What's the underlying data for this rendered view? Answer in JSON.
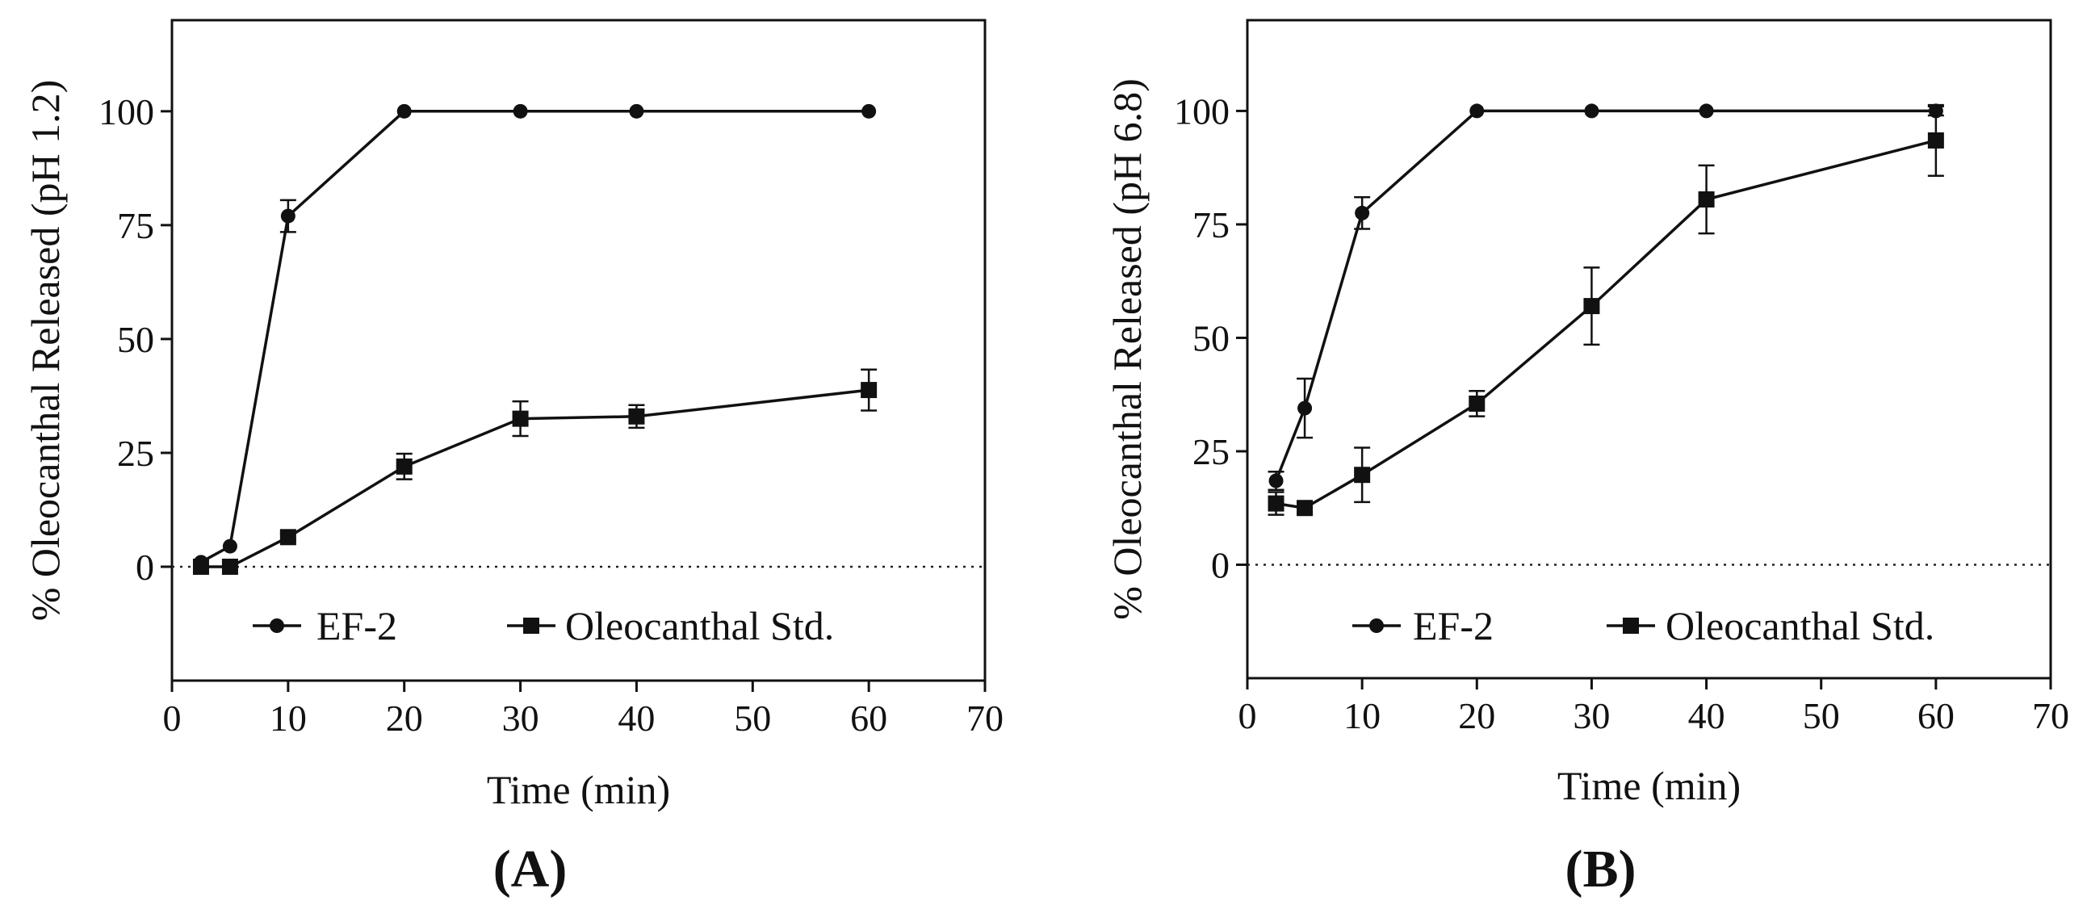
{
  "chart_data": [
    {
      "type": "line",
      "panel_label": "(A)",
      "title": "",
      "xlabel": "Time (min)",
      "ylabel": "% Oleocanthal Released (pH 1.2)",
      "xlim": [
        0,
        70
      ],
      "ylim": [
        -25,
        120
      ],
      "x_ticks": [
        "0",
        "10",
        "20",
        "30",
        "40",
        "50",
        "60",
        "70"
      ],
      "y_ticks": [
        "0",
        "25",
        "50",
        "75",
        "100"
      ],
      "grid": false,
      "zero_reference_line": "dotted",
      "legend_position": "bottom-center",
      "series": [
        {
          "name": "EF-2",
          "marker": "circle",
          "x": [
            2.5,
            5,
            10,
            20,
            30,
            40,
            60
          ],
          "values": [
            1,
            4.5,
            77,
            100,
            100,
            100,
            100
          ],
          "error": [
            0,
            0,
            3.5,
            0,
            0,
            0,
            0
          ]
        },
        {
          "name": "Oleocanthal Std.",
          "marker": "square",
          "x": [
            2.5,
            5,
            10,
            20,
            30,
            40,
            60
          ],
          "values": [
            0,
            0,
            6.5,
            22,
            32.5,
            33,
            38.8
          ],
          "error": [
            0,
            0,
            0.8,
            2.8,
            3.8,
            2.5,
            4.5
          ]
        }
      ]
    },
    {
      "type": "line",
      "panel_label": "(B)",
      "title": "",
      "xlabel": "Time (min)",
      "ylabel": "% Oleocanthal Released (pH 6.8)",
      "xlim": [
        0,
        70
      ],
      "ylim": [
        -25,
        120
      ],
      "x_ticks": [
        "0",
        "10",
        "20",
        "30",
        "40",
        "50",
        "60",
        "70"
      ],
      "y_ticks": [
        "0",
        "25",
        "50",
        "75",
        "100"
      ],
      "grid": false,
      "zero_reference_line": "dotted",
      "legend_position": "bottom-center",
      "series": [
        {
          "name": "EF-2",
          "marker": "circle",
          "x": [
            2.5,
            5,
            10,
            20,
            30,
            40,
            60
          ],
          "values": [
            18.5,
            34.5,
            77.5,
            100,
            100,
            100,
            100
          ],
          "error": [
            2,
            6.5,
            3.5,
            0,
            0,
            0,
            1
          ]
        },
        {
          "name": "Oleocanthal Std.",
          "marker": "square",
          "x": [
            2.5,
            5,
            10,
            20,
            30,
            40,
            60
          ],
          "values": [
            13.5,
            12.5,
            19.8,
            35.5,
            57,
            80.5,
            93.5
          ],
          "error": [
            2.5,
            1.2,
            6,
            2.8,
            8.5,
            7.5,
            7.8
          ]
        }
      ]
    }
  ]
}
